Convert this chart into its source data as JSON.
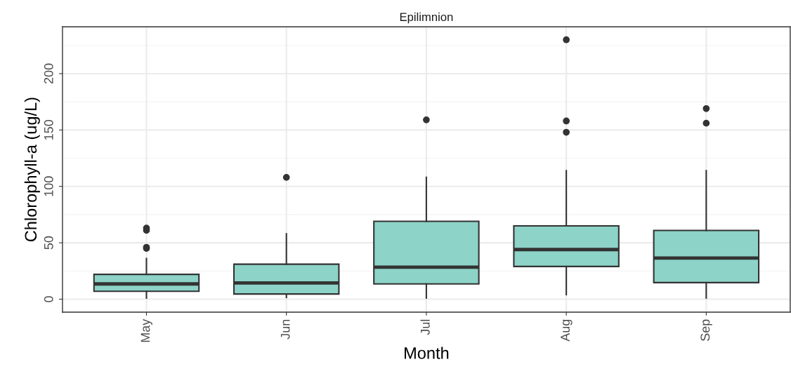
{
  "chart_data": {
    "type": "box",
    "title": "Epilimnion",
    "xlabel": "Month",
    "ylabel": "Chlorophyll-a (ug/L)",
    "categories": [
      "May",
      "Jun",
      "Jul",
      "Aug",
      "Sep"
    ],
    "color": "#8dd3c7",
    "boxes": [
      {
        "low": 1,
        "q1": 7,
        "median": 13.5,
        "q3": 22,
        "high": 36,
        "outliers": [
          45,
          46,
          61,
          63
        ]
      },
      {
        "low": 1.5,
        "q1": 4.6,
        "median": 14.4,
        "q3": 31,
        "high": 58,
        "outliers": [
          108
        ]
      },
      {
        "low": 1,
        "q1": 13.5,
        "median": 28.4,
        "q3": 69,
        "high": 108,
        "outliers": [
          159
        ]
      },
      {
        "low": 4,
        "q1": 29,
        "median": 44,
        "q3": 65,
        "high": 114,
        "outliers": [
          148,
          158,
          230
        ]
      },
      {
        "low": 1,
        "q1": 14.7,
        "median": 36.5,
        "q3": 61,
        "high": 114,
        "outliers": [
          156,
          169
        ]
      }
    ],
    "ylim": [
      -11.5,
      241.5
    ],
    "yticks": [
      0,
      50,
      100,
      150,
      200
    ],
    "grid": true
  }
}
